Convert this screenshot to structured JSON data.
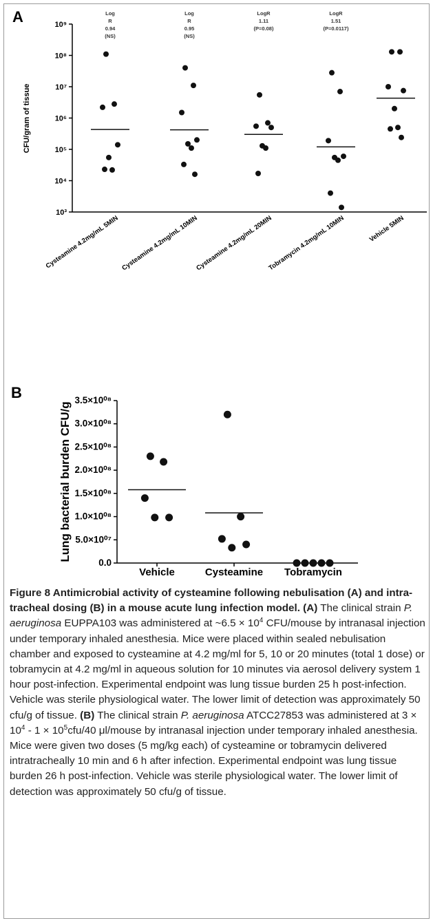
{
  "chart_data": [
    {
      "type": "dotplot",
      "panel": "A",
      "y_label": "CFU/gram of tissue",
      "log": true,
      "ylim": [
        1000,
        1000000000
      ],
      "yticks": [
        {
          "value": 1000,
          "label": "10³"
        },
        {
          "value": 10000,
          "label": "10⁴"
        },
        {
          "value": 100000,
          "label": "10⁵"
        },
        {
          "value": 1000000,
          "label": "10⁶"
        },
        {
          "value": 10000000,
          "label": "10⁷"
        },
        {
          "value": 100000000,
          "label": "10⁸"
        },
        {
          "value": 1000000000,
          "label": "10⁹"
        }
      ],
      "categories": [
        "Cysteamine 4.2mg/mL 5MIN",
        "Cysteamine 4.2mg/mL 10MIN",
        "Cysteamine 4.2mg/mL 20MIN",
        "Tobramycin 4.2mg/mL 10MIN",
        "Vehicle 5MIN"
      ],
      "annotations": [
        [
          "Log",
          "R",
          "0.94",
          "(NS)"
        ],
        [
          "Log",
          "R",
          "0.95",
          "(NS)"
        ],
        [
          "LogR",
          "1.11",
          "(P=0.08)"
        ],
        [
          "LogR",
          "1.51",
          "(P=0.0117)"
        ],
        []
      ],
      "points": [
        [
          110000000,
          2800000,
          2200000,
          140000,
          55000,
          22000,
          23000
        ],
        [
          40000000,
          11000000,
          1500000,
          200000,
          150000,
          110000,
          33000,
          16000
        ],
        [
          5500000,
          700000,
          550000,
          500000,
          130000,
          110000,
          17000
        ],
        [
          28000000,
          7000000,
          190000,
          60000,
          55000,
          45000,
          4000,
          1400
        ],
        [
          130000000,
          130000000,
          10000000,
          7500000,
          2000000,
          500000,
          450000,
          240000
        ]
      ],
      "medians": [
        430000,
        420000,
        300000,
        120000,
        4300000
      ],
      "color": "#111111"
    },
    {
      "type": "dotplot",
      "panel": "B",
      "y_label": "Lung bacterial burden CFU/g",
      "log": false,
      "ylim": [
        0,
        350000000
      ],
      "yticks": [
        {
          "value": 0,
          "label": "0.0"
        },
        {
          "value": 50000000,
          "label": "5.0×10⁰⁷"
        },
        {
          "value": 100000000,
          "label": "1.0×10⁰⁸"
        },
        {
          "value": 150000000,
          "label": "1.5×10⁰⁸"
        },
        {
          "value": 200000000,
          "label": "2.0×10⁰⁸"
        },
        {
          "value": 250000000,
          "label": "2.5×10⁰⁸"
        },
        {
          "value": 300000000,
          "label": "3.0×10⁰⁸"
        },
        {
          "value": 350000000,
          "label": "3.5×10⁰⁸"
        }
      ],
      "categories": [
        "Vehicle",
        "Cysteamine",
        "Tobramycin"
      ],
      "points": [
        [
          230000000,
          218000000,
          140000000,
          98000000,
          98000000
        ],
        [
          320000000,
          100000000,
          52000000,
          40000000,
          33000000
        ],
        [
          0,
          0,
          0,
          0,
          0
        ]
      ],
      "medians": [
        158000000,
        108000000,
        null
      ],
      "color": "#111111"
    }
  ],
  "caption": {
    "parts": [
      "Figure 8 Antimicrobial activity of cysteamine following nebulisation (A) and intra-tracheal dosing (B) in a mouse acute lung infection model.",
      "(A)",
      "The clinical strain",
      "P. aeruginosa",
      "EUPPA103 was administered at ~6.5 × 10",
      "4",
      "CFU/mouse by intranasal injection under temporary inhaled anesthesia. Mice were placed within sealed nebulisation chamber and exposed to cysteamine at 4.2 mg/ml for 5, 10 or 20 minutes (total 1 dose) or tobramycin at 4.2 mg/ml in aqueous solution for 10 minutes via aerosol delivery system 1 hour post-infection. Experimental endpoint was lung tissue burden 25 h post-infection. Vehicle was sterile physiological water. The lower limit of detection was approximately 50 cfu/g of tissue.",
      "(B)",
      "The clinical strain",
      "P. aeruginosa",
      "ATCC27853 was administered at 3 × 10",
      "4",
      "- 1 × 10",
      "5",
      "cfu/40 μl/mouse by intranasal injection under temporary inhaled anesthesia. Mice were given two doses (5 mg/kg each) of cysteamine or tobramycin delivered intratracheally 10 min and 6 h after infection. Experimental endpoint was lung tissue burden 26 h post-infection. Vehicle was sterile physiological water. The lower limit of detection was approximately 50 cfu/g of tissue."
    ]
  }
}
